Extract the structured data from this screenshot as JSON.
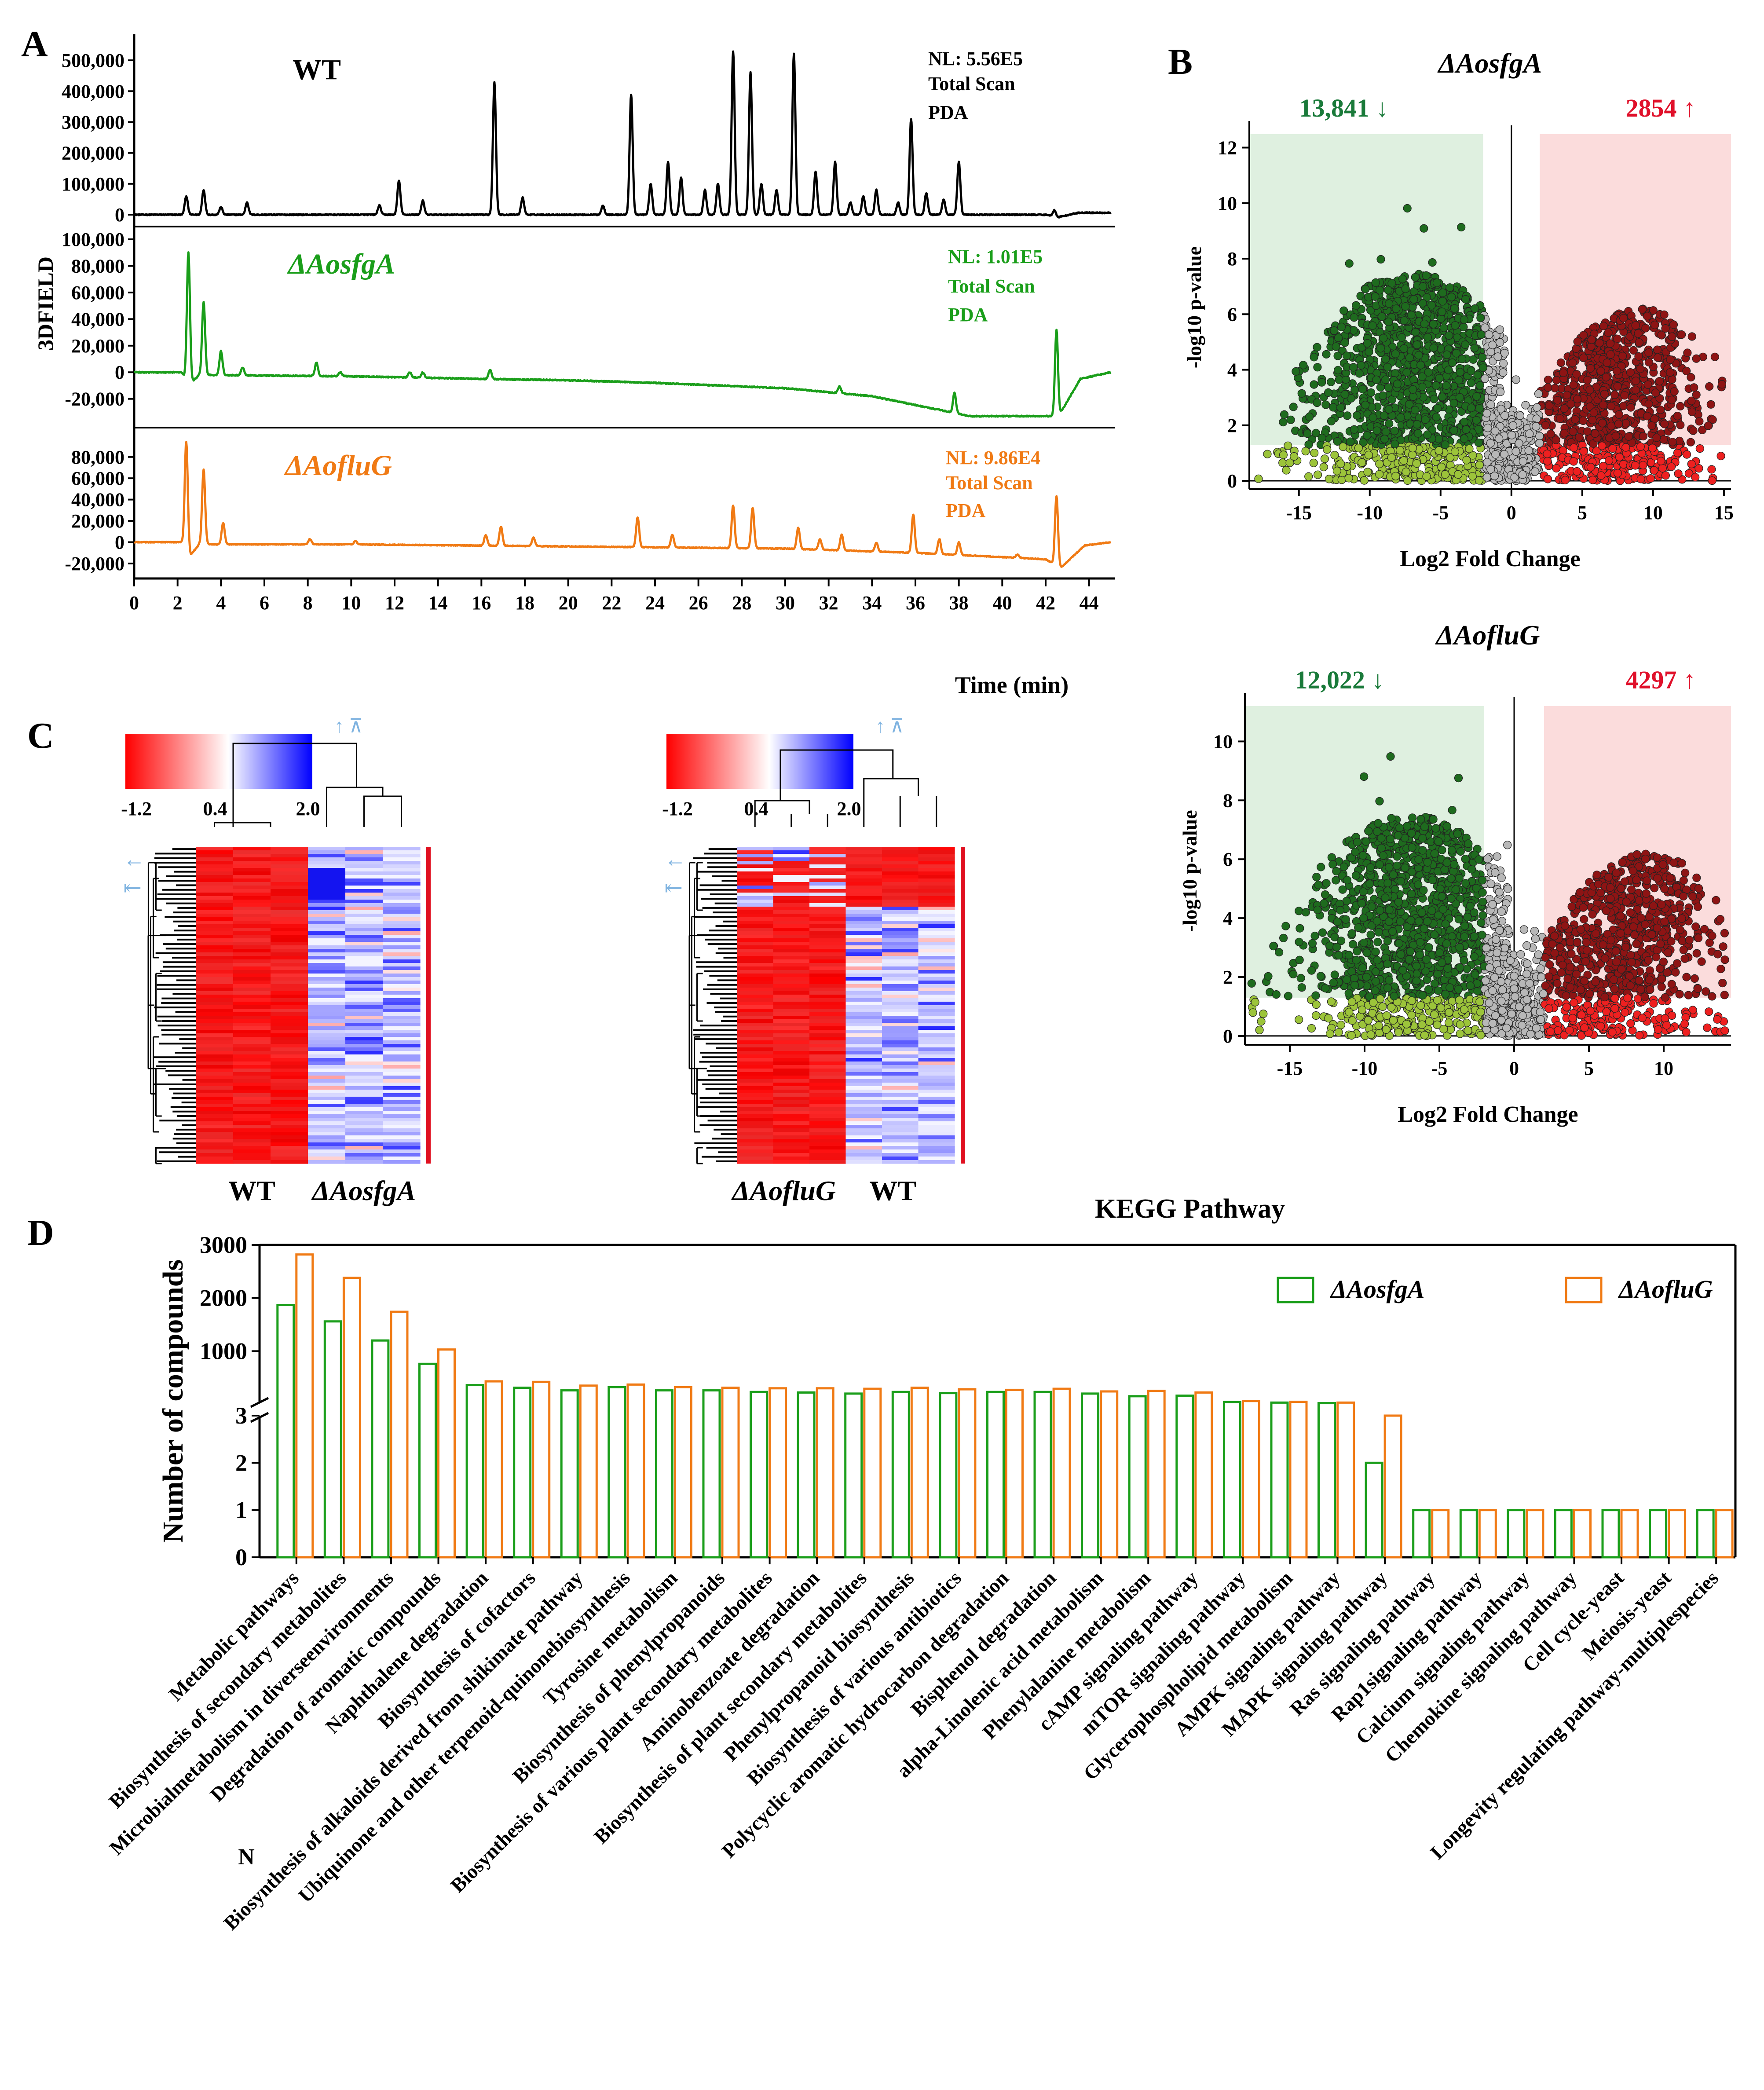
{
  "panel_labels": {
    "A": "A",
    "B": "B",
    "C": "C",
    "D": "D"
  },
  "colors": {
    "wt": "#000000",
    "aosfga": "#1a9e1a",
    "aofluG": "#f07a14",
    "down": "#1a7a3a",
    "up": "#e0102a"
  },
  "chart_data": [
    {
      "id": "A",
      "type": "line",
      "title": "",
      "xlabel": "Time (min)",
      "ylabel": "3DFIELD",
      "xlim": [
        0,
        45
      ],
      "xticks": [
        0,
        2,
        4,
        6,
        8,
        10,
        12,
        14,
        16,
        18,
        20,
        22,
        24,
        26,
        28,
        30,
        32,
        34,
        36,
        38,
        40,
        42,
        44
      ],
      "tracks": [
        {
          "name": "WT",
          "color": "#000000",
          "ylim": [
            -10000,
            560000
          ],
          "yticks": [
            0,
            100000,
            200000,
            300000,
            400000,
            500000
          ],
          "ytick_labels": [
            "0",
            "100,000",
            "200,000",
            "300,000",
            "400,000",
            "500,000"
          ],
          "nl": "NL: 5.56E5",
          "scan": "Total Scan",
          "pda": "PDA",
          "baseline": [
            [
              0.0,
              0
            ],
            [
              42.0,
              0
            ],
            [
              42.6,
              -8000
            ],
            [
              43.5,
              6000
            ],
            [
              45.0,
              6000
            ]
          ],
          "peaks": [
            [
              2.4,
              60000
            ],
            [
              3.2,
              80000
            ],
            [
              4.0,
              25000
            ],
            [
              5.2,
              40000
            ],
            [
              11.3,
              30000
            ],
            [
              12.2,
              110000
            ],
            [
              13.3,
              45000
            ],
            [
              16.6,
              430000
            ],
            [
              17.9,
              55000
            ],
            [
              21.6,
              30000
            ],
            [
              22.9,
              390000
            ],
            [
              23.8,
              100000
            ],
            [
              24.6,
              170000
            ],
            [
              25.2,
              120000
            ],
            [
              26.3,
              80000
            ],
            [
              26.9,
              100000
            ],
            [
              27.6,
              530000
            ],
            [
              28.4,
              460000
            ],
            [
              28.9,
              100000
            ],
            [
              29.6,
              80000
            ],
            [
              30.4,
              520000
            ],
            [
              31.4,
              140000
            ],
            [
              32.3,
              170000
            ],
            [
              33.0,
              40000
            ],
            [
              33.6,
              60000
            ],
            [
              34.2,
              80000
            ],
            [
              35.2,
              40000
            ],
            [
              35.8,
              310000
            ],
            [
              36.5,
              70000
            ],
            [
              37.3,
              50000
            ],
            [
              38.0,
              170000
            ],
            [
              42.4,
              20000
            ]
          ]
        },
        {
          "name": "ΔAosfgA",
          "color": "#1a9e1a",
          "ylim": [
            -35000,
            102000
          ],
          "yticks": [
            -20000,
            0,
            20000,
            40000,
            60000,
            80000,
            100000
          ],
          "ytick_labels": [
            "-20,000",
            "0",
            "20,000",
            "40,000",
            "60,000",
            "80,000",
            "100,000"
          ],
          "nl": "NL: 1.01E5",
          "scan": "Total Scan",
          "pda": "PDA",
          "baseline": [
            [
              0.0,
              0
            ],
            [
              2.2,
              0
            ],
            [
              2.5,
              -10000
            ],
            [
              3.0,
              -2000
            ],
            [
              10.0,
              -3000
            ],
            [
              16.0,
              -5000
            ],
            [
              20.0,
              -6000
            ],
            [
              24.0,
              -8000
            ],
            [
              30.0,
              -12000
            ],
            [
              34.0,
              -18000
            ],
            [
              37.0,
              -28000
            ],
            [
              38.5,
              -33000
            ],
            [
              42.0,
              -33000
            ],
            [
              42.6,
              -33000
            ],
            [
              43.6,
              -5000
            ],
            [
              45.0,
              0
            ]
          ],
          "peaks": [
            [
              2.5,
              100000
            ],
            [
              3.2,
              55000
            ],
            [
              4.0,
              18000
            ],
            [
              5.0,
              6000
            ],
            [
              8.4,
              10000
            ],
            [
              9.5,
              3000
            ],
            [
              12.7,
              4000
            ],
            [
              13.3,
              4000
            ],
            [
              16.4,
              7000
            ],
            [
              32.5,
              5000
            ],
            [
              37.8,
              15000
            ],
            [
              42.5,
              65000
            ]
          ]
        },
        {
          "name": "ΔAofluG",
          "color": "#f07a14",
          "ylim": [
            -32000,
            96000
          ],
          "yticks": [
            -20000,
            0,
            20000,
            40000,
            60000,
            80000
          ],
          "ytick_labels": [
            "-20,000",
            "0",
            "20,000",
            "40,000",
            "60,000",
            "80,000"
          ],
          "nl": "NL: 9.86E4",
          "scan": "Total Scan",
          "pda": "PDA",
          "baseline": [
            [
              0.0,
              0
            ],
            [
              2.2,
              0
            ],
            [
              2.6,
              -12000
            ],
            [
              3.0,
              -2000
            ],
            [
              10.0,
              -2000
            ],
            [
              20.0,
              -4000
            ],
            [
              30.0,
              -6000
            ],
            [
              36.0,
              -10000
            ],
            [
              40.0,
              -14000
            ],
            [
              42.0,
              -16000
            ],
            [
              42.7,
              -24000
            ],
            [
              43.8,
              -3000
            ],
            [
              45.0,
              0
            ]
          ],
          "peaks": [
            [
              2.4,
              100000
            ],
            [
              3.2,
              70000
            ],
            [
              4.1,
              20000
            ],
            [
              8.1,
              5000
            ],
            [
              10.2,
              3000
            ],
            [
              16.2,
              10000
            ],
            [
              16.9,
              18000
            ],
            [
              18.4,
              8000
            ],
            [
              23.2,
              28000
            ],
            [
              24.8,
              12000
            ],
            [
              27.6,
              40000
            ],
            [
              28.5,
              38000
            ],
            [
              30.6,
              20000
            ],
            [
              31.6,
              10000
            ],
            [
              32.6,
              15000
            ],
            [
              34.2,
              8000
            ],
            [
              35.9,
              36000
            ],
            [
              37.1,
              14000
            ],
            [
              38.0,
              12000
            ],
            [
              40.7,
              3000
            ],
            [
              42.5,
              65000
            ]
          ]
        }
      ]
    },
    {
      "id": "B1",
      "type": "scatter",
      "title": "ΔAosfgA",
      "xlabel": "Log2 Fold Change",
      "ylabel": "-log10 p-value",
      "xlim": [
        -18.5,
        15.5
      ],
      "ylim": [
        -0.3,
        12.8
      ],
      "xticks": [
        -15,
        -10,
        -5,
        0,
        5,
        10,
        15
      ],
      "yticks": [
        0,
        2,
        4,
        6,
        8,
        10,
        12
      ],
      "fc_threshold": 2,
      "p_threshold": 1.3,
      "down_count": "13,841",
      "up_count": "2854",
      "down_arrow": "↓",
      "up_arrow": "↑",
      "groups": {
        "down_sig": "#1e6b1e",
        "down_fc": "#9cc43a",
        "ns": "#b8b8b8",
        "up_fc": "#ee2020",
        "up_sig": "#8e1414"
      },
      "ymax_data": 12.5
    },
    {
      "id": "B2",
      "type": "scatter",
      "title": "ΔAofluG",
      "xlabel": "Log2 Fold Change",
      "ylabel": "-log10 p-value",
      "xlim": [
        -18.0,
        14.5
      ],
      "ylim": [
        -0.3,
        11.5
      ],
      "xticks": [
        -15,
        -10,
        -5,
        0,
        5,
        10
      ],
      "yticks": [
        0,
        2,
        4,
        6,
        8,
        10
      ],
      "fc_threshold": 2,
      "p_threshold": 1.3,
      "down_count": "12,022",
      "up_count": "4297",
      "down_arrow": "↓",
      "up_arrow": "↑",
      "groups": {
        "down_sig": "#1e6b1e",
        "down_fc": "#9cc43a",
        "ns": "#b8b8b8",
        "up_fc": "#ee2020",
        "up_sig": "#8e1414"
      },
      "ymax_data": 11.0
    },
    {
      "id": "C1",
      "type": "heatmap",
      "colorbar": {
        "min": "-1.2",
        "mid": "0.4",
        "max": "2.0"
      },
      "group_labels": [
        "WT",
        "ΔAosfgA"
      ],
      "columns": 6,
      "note": "WT columns uniformly red; ΔAosfgA columns blue/white mosaic"
    },
    {
      "id": "C2",
      "type": "heatmap",
      "colorbar": {
        "min": "-1.2",
        "mid": "0.4",
        "max": "2.0"
      },
      "group_labels": [
        "ΔAofluG",
        "WT"
      ],
      "columns": 6,
      "note": "top cluster mixed; lower block red in ΔAofluG, blue/white in WT"
    },
    {
      "id": "D",
      "type": "bar",
      "title": "KEGG Pathway",
      "ylabel": "Number of compounds",
      "ylim_lower": [
        0,
        3
      ],
      "ylim_upper": [
        0,
        3000
      ],
      "yticks_lower": [
        0,
        1,
        2,
        3
      ],
      "yticks_upper": [
        1000,
        2000,
        3000
      ],
      "categories": [
        "Metabolic pathways",
        "Biosynthesis of secondary metabolites",
        "Microbialmetabolism in diverseenvironments",
        "Degradation of aromatic compounds",
        "Naphthalene degradation",
        "Biosynthesis of cofactors",
        "Biosynthesis of alkaloids derived from shikimate pathway",
        "Ubiquinone and other terpenoid-quinonebiosynthesis",
        "Tyrosine metabolism",
        "Biosynthesis of phenylpropanoids",
        "Biosynthesis of various plant secondary metabolites",
        "Aminobenzoate degradation",
        "Biosynthesis of plant secondary metabolites",
        "Phenylpropanoid biosynthesis",
        "Biosynthesis of various antibiotics",
        "Polycyclic aromatic hydrocarbon degradation",
        "Bisphenol degradation",
        "alpha-Linolenic acid metabolism",
        "Phenylalanine metabolism",
        "cAMP signaling pathway",
        "mTOR signaling pathway",
        "Glycerophospholipid metabolism",
        "AMPK signaling pathway",
        "MAPK signaling pathway",
        "Ras signaling pathway",
        "Rap1signaling pathway",
        "Calcium signaling pathway",
        "Chemokine signaling pathway",
        "Cell cycle-yeast",
        "Meiosis-yeast",
        "Longevity regulating pathway-multiplespecies"
      ],
      "series": [
        {
          "name": "ΔAosfgA",
          "color": "#1a9e1a",
          "values": [
            1870,
            1560,
            1200,
            760,
            360,
            310,
            260,
            320,
            260,
            260,
            230,
            220,
            200,
            230,
            210,
            230,
            230,
            200,
            150,
            160,
            40,
            30,
            20,
            2,
            1,
            1,
            1,
            1,
            1,
            1,
            1
          ]
        },
        {
          "name": "ΔAofluG",
          "color": "#f07a14",
          "values": [
            2820,
            2380,
            1740,
            1030,
            430,
            420,
            350,
            370,
            320,
            310,
            300,
            300,
            290,
            310,
            280,
            270,
            290,
            240,
            250,
            220,
            60,
            45,
            30,
            3,
            1,
            1,
            1,
            1,
            1,
            1,
            1
          ]
        }
      ],
      "extra_label": "N"
    }
  ]
}
